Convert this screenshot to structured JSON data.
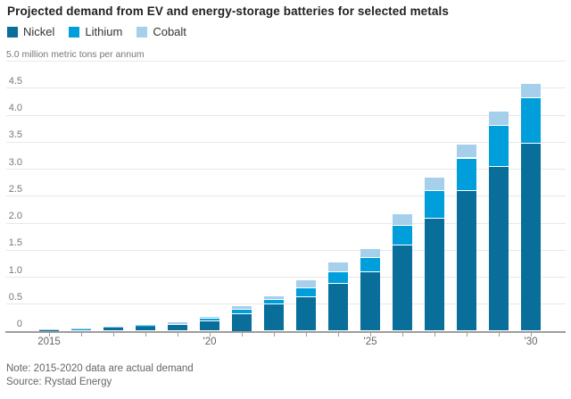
{
  "page": {
    "title": "Projected demand from EV and energy-storage batteries for selected metals",
    "note": "Note: 2015-2020 data are actual demand",
    "source": "Source: Rystad Energy"
  },
  "chart_data": {
    "type": "bar",
    "stacked": true,
    "title": "Projected demand from EV and energy-storage batteries for selected metals",
    "ylabel": "5.0 million metric tons per annum",
    "categories": [
      2015,
      2016,
      2017,
      2018,
      2019,
      2020,
      2021,
      2022,
      2023,
      2024,
      2025,
      2026,
      2027,
      2028,
      2029,
      2030
    ],
    "series": [
      {
        "name": "Nickel",
        "color": "#096e9a",
        "values": [
          0.013,
          0.025,
          0.055,
          0.075,
          0.1,
          0.17,
          0.31,
          0.48,
          0.62,
          0.87,
          1.08,
          1.58,
          2.08,
          2.58,
          3.04,
          3.46
        ]
      },
      {
        "name": "Lithium",
        "color": "#009edb",
        "values": [
          0.004,
          0.006,
          0.012,
          0.015,
          0.03,
          0.055,
          0.08,
          0.09,
          0.16,
          0.21,
          0.26,
          0.36,
          0.5,
          0.61,
          0.76,
          0.85
        ]
      },
      {
        "name": "Cobalt",
        "color": "#a6cfec",
        "values": [
          0.003,
          0.004,
          0.008,
          0.01,
          0.02,
          0.035,
          0.07,
          0.07,
          0.16,
          0.18,
          0.18,
          0.22,
          0.25,
          0.26,
          0.25,
          0.26
        ]
      }
    ],
    "totals": [
      0.02,
      0.035,
      0.075,
      0.1,
      0.15,
      0.26,
      0.46,
      0.64,
      0.94,
      1.26,
      1.52,
      2.16,
      2.83,
      3.45,
      4.05,
      4.57
    ],
    "ylim": [
      0,
      5
    ],
    "ytick_step": 0.5,
    "ytick_labels": [
      "0",
      "0.5",
      "1.0",
      "1.5",
      "2.0",
      "2.5",
      "3.0",
      "3.5",
      "4.0",
      "4.5"
    ],
    "xtick_labels": {
      "2015": "2015",
      "2020": "'20",
      "2025": "'25",
      "2030": "'30"
    },
    "grid": "horizontal",
    "legend_position": "top-left",
    "note": "Note: 2015-2020 data are actual demand",
    "source": "Source: Rystad Energy"
  }
}
